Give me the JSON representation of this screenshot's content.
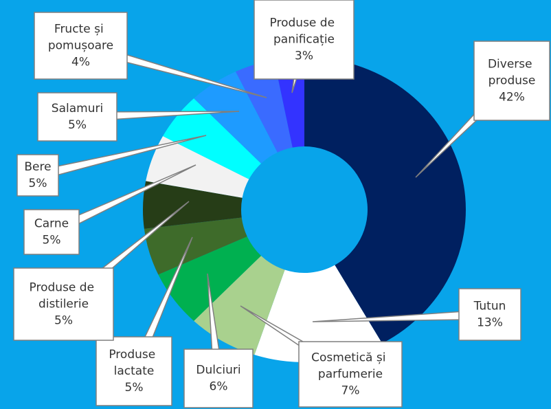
{
  "chart_data": {
    "type": "donut",
    "categories": [
      "Diverse produse",
      "Tutun",
      "Cosmetică și parfumerie",
      "Dulciuri",
      "Produse lactate",
      "Produse de distilerie",
      "Carne",
      "Bere",
      "Salamuri",
      "Fructe și pomușoare",
      "Produse de panificație"
    ],
    "values": [
      42,
      13,
      7,
      6,
      5,
      5,
      5,
      5,
      5,
      4,
      3
    ],
    "value_labels": [
      "42%",
      "13%",
      "7%",
      "6%",
      "5%",
      "5%",
      "5%",
      "5%",
      "5%",
      "4%",
      "3%"
    ],
    "colors": [
      "#002060",
      "#ffffff",
      "#a9d18e",
      "#00b050",
      "#3e6b2a",
      "#263d17",
      "#f2f2f2",
      "#00ffff",
      "#1e9bff",
      "#3a6bff",
      "#3333ff"
    ]
  }
}
